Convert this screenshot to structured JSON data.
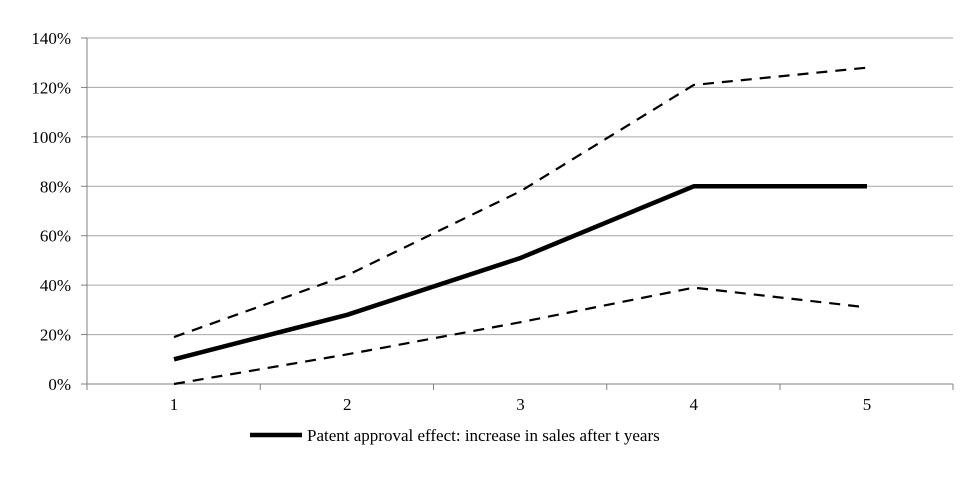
{
  "chart_data": {
    "type": "line",
    "title": "",
    "xlabel": "",
    "ylabel": "",
    "x": [
      1,
      2,
      3,
      4,
      5
    ],
    "x_tick_labels": [
      "1",
      "2",
      "3",
      "4",
      "5"
    ],
    "y_tick_labels": [
      "0%",
      "20%",
      "40%",
      "60%",
      "80%",
      "100%",
      "120%",
      "140%"
    ],
    "y_ticks": [
      0,
      20,
      40,
      60,
      80,
      100,
      120,
      140
    ],
    "ylim": [
      0,
      140
    ],
    "grid": "horizontal",
    "legend_position": "bottom",
    "series": [
      {
        "name": "Patent approval effect: increase in sales after t years",
        "values": [
          10,
          28,
          51,
          80,
          80
        ],
        "style": "solid",
        "color": "#000000"
      },
      {
        "values": [
          19,
          44,
          78,
          121,
          128
        ],
        "style": "dashed",
        "color": "#000000"
      },
      {
        "values": [
          0,
          12,
          25,
          39,
          31
        ],
        "style": "dashed",
        "color": "#000000"
      }
    ]
  }
}
